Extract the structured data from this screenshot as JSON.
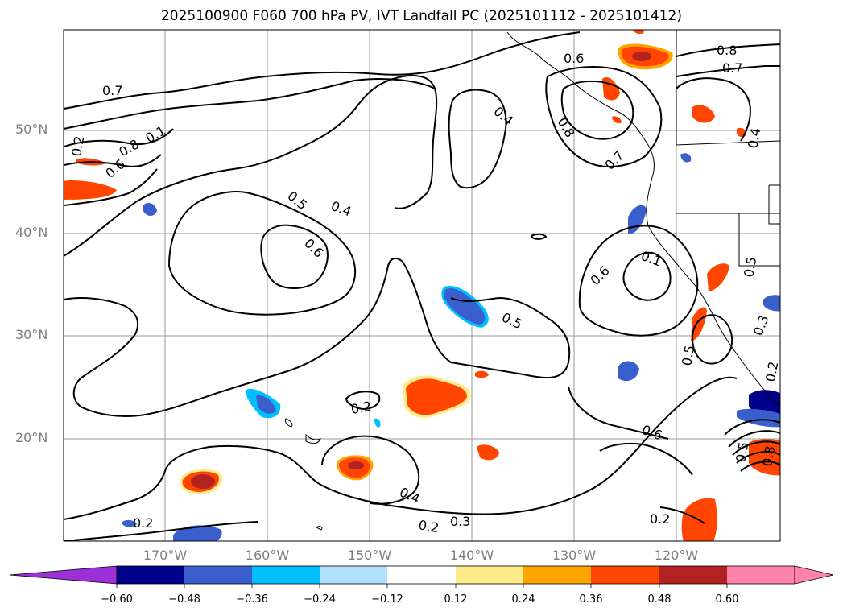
{
  "title": "2025100900 F060 700 hPa PV, IVT Landfall PC (2025101112 - 2025101412)",
  "map": {
    "lat_labels": [
      "50°N",
      "40°N",
      "30°N",
      "20°N"
    ],
    "lon_labels": [
      "170°W",
      "160°W",
      "150°W",
      "140°W",
      "130°W",
      "120°W"
    ],
    "contour_labels": [
      {
        "text": "0.7"
      },
      {
        "text": "0.6"
      },
      {
        "text": "0.8"
      },
      {
        "text": "0.7"
      },
      {
        "text": "0.4"
      },
      {
        "text": "0.8"
      },
      {
        "text": "0.7"
      },
      {
        "text": "0.5"
      },
      {
        "text": "0.4"
      },
      {
        "text": "0.6"
      },
      {
        "text": "0.8"
      },
      {
        "text": "0.6"
      },
      {
        "text": "0.1"
      },
      {
        "text": "0.2"
      },
      {
        "text": "0.6"
      },
      {
        "text": "0.1"
      },
      {
        "text": "0.5"
      },
      {
        "text": "0.5"
      },
      {
        "text": "0.5"
      },
      {
        "text": "0.3"
      },
      {
        "text": "0.2"
      },
      {
        "text": "0.2"
      },
      {
        "text": "0.6"
      },
      {
        "text": "0.4"
      },
      {
        "text": "0.3"
      },
      {
        "text": "0.2"
      },
      {
        "text": "0.2"
      },
      {
        "text": "0.2"
      },
      {
        "text": "0.5"
      },
      {
        "text": "0.8"
      },
      {
        "text": "0.4"
      }
    ]
  },
  "colorbar": {
    "ticks": [
      "−0.60",
      "−0.48",
      "−0.36",
      "−0.24",
      "−0.12",
      "0.12",
      "0.24",
      "0.36",
      "0.48",
      "0.60"
    ],
    "colors": [
      "#9b30d6",
      "#00008b",
      "#3a5fcd",
      "#00bfff",
      "#b0e2ff",
      "#ffffff",
      "#ffec8b",
      "#ffa500",
      "#ff4500",
      "#b22222",
      "#ff82ab"
    ]
  }
}
